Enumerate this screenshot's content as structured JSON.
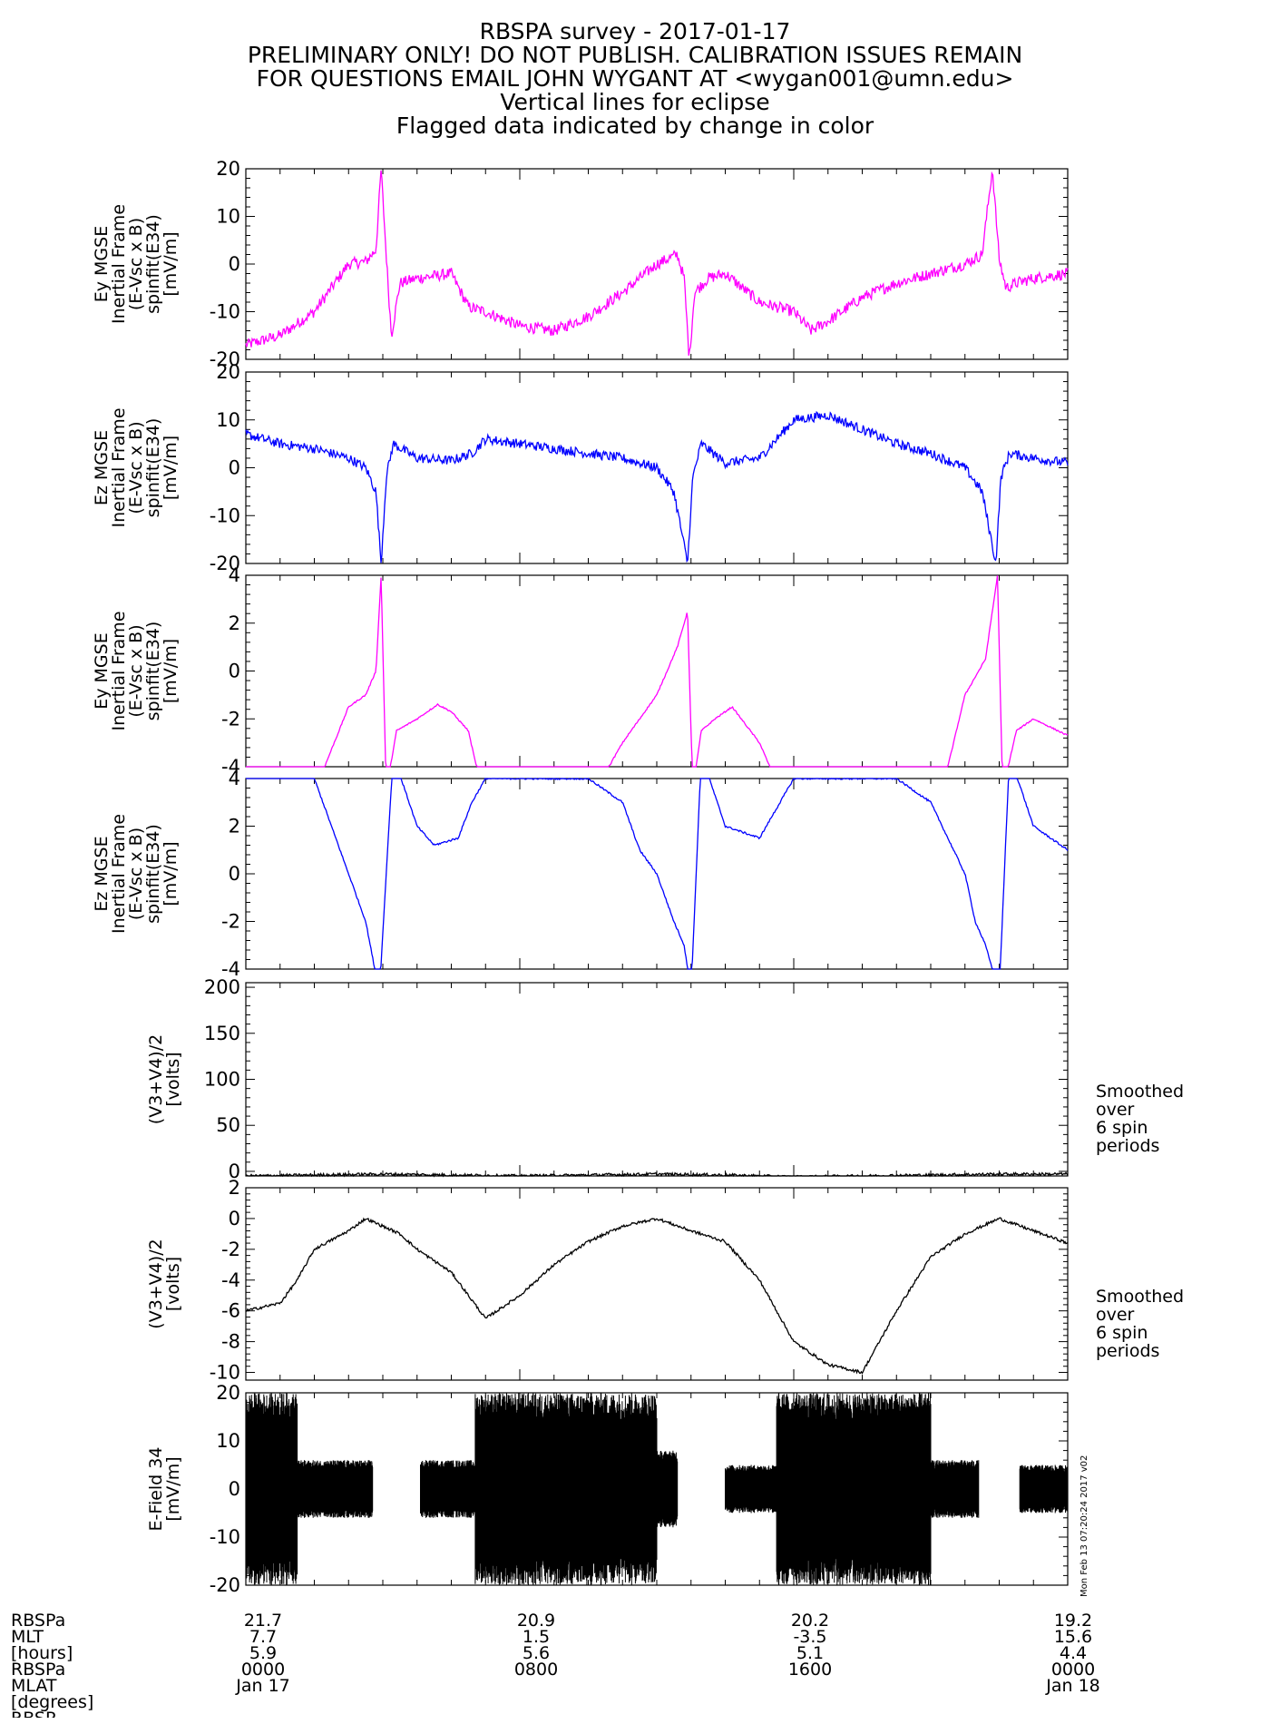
{
  "title_lines": [
    "RBSPA survey - 2017-01-17",
    "PRELIMINARY ONLY! DO NOT PUBLISH. CALIBRATION ISSUES REMAIN",
    "FOR QUESTIONS EMAIL JOHN WYGANT AT <wygan001@umn.edu>",
    "Vertical lines for eclipse",
    "Flagged data indicated by change in color"
  ],
  "side_note": [
    "Smoothed",
    "over",
    "6 spin",
    "periods"
  ],
  "footer": {
    "row_labels": [
      "RBSPa",
      "MLT",
      "[hours]",
      "RBSPa",
      "MLAT",
      "[degrees]",
      "RBSP"
    ],
    "columns": [
      {
        "t": 0,
        "lines": [
          "21.7",
          "7.7",
          "5.9",
          "0000",
          "Jan 17"
        ]
      },
      {
        "t": 8,
        "lines": [
          "20.9",
          "1.5",
          "5.6",
          "0800",
          ""
        ]
      },
      {
        "t": 16,
        "lines": [
          "20.2",
          "-3.5",
          "5.1",
          "1600",
          ""
        ]
      },
      {
        "t": 24,
        "lines": [
          "19.2",
          "15.6",
          "4.4",
          "0000",
          "Jan 18"
        ]
      }
    ]
  },
  "stamp": "Mon Feb 13 07:20:24 2017 v02",
  "chart_data": [
    {
      "type": "line",
      "ylabel": [
        "Ey MGSE",
        "Inertial Frame",
        "(E-Vsc x B)",
        "spinfit(E34)",
        "[mV/m]"
      ],
      "ylim": [
        -20,
        20
      ],
      "yticks": [
        20,
        10,
        0,
        -10,
        -20
      ],
      "color": "#ff00ff",
      "noise": 1.2,
      "x": [
        0,
        1,
        2,
        3,
        3.5,
        3.8,
        3.95,
        4.1,
        4.25,
        4.5,
        5,
        6,
        6.5,
        7,
        8,
        9,
        10,
        11,
        12,
        12.6,
        12.8,
        12.95,
        13.1,
        13.5,
        14,
        15,
        16,
        16.5,
        17,
        18,
        19,
        20,
        21,
        21.5,
        21.8,
        22,
        22.2,
        22.5,
        23,
        24
      ],
      "y": [
        -17,
        -15,
        -10,
        0,
        0.5,
        3,
        20,
        2,
        -15,
        -4,
        -3,
        -2,
        -9,
        -10,
        -13,
        -14,
        -11,
        -6,
        0,
        2,
        -3,
        -20,
        -6,
        -3,
        -2,
        -8,
        -10,
        -14,
        -12,
        -7,
        -4,
        -2,
        0,
        2,
        20,
        1,
        -5,
        -4,
        -3,
        -2
      ]
    },
    {
      "type": "line",
      "ylabel": [
        "Ez MGSE",
        "Inertial Frame",
        "(E-Vsc x B)",
        "spinfit(E34)",
        "[mV/m]"
      ],
      "ylim": [
        -20,
        20
      ],
      "yticks": [
        20,
        10,
        0,
        -10,
        -20
      ],
      "color": "#0000ff",
      "noise": 1.0,
      "x": [
        0,
        1,
        2,
        3,
        3.5,
        3.8,
        3.95,
        4.1,
        4.3,
        5,
        6,
        6.6,
        7,
        8,
        9,
        10,
        11,
        12,
        12.5,
        12.9,
        13.05,
        13.3,
        14,
        15,
        15.5,
        16,
        17,
        18,
        19,
        20,
        21,
        21.5,
        21.9,
        22.05,
        22.3,
        23,
        24
      ],
      "y": [
        7,
        5,
        4,
        2,
        0,
        -5,
        -20,
        -2,
        5,
        2,
        1.5,
        3,
        6,
        5,
        4,
        3,
        2,
        0,
        -5,
        -20,
        -2,
        5,
        1,
        2,
        6,
        10,
        11,
        8,
        5,
        3,
        0,
        -5,
        -20,
        -2,
        3,
        2,
        1
      ]
    },
    {
      "type": "line",
      "ylabel": [
        "Ey MGSE",
        "Inertial Frame",
        "(E-Vsc x B)",
        "spinfit(E34)",
        "[mV/m]"
      ],
      "ylim": [
        -4,
        4
      ],
      "yticks": [
        4,
        2,
        0,
        -2,
        -4
      ],
      "color": "#ff00ff",
      "noise": 0.15,
      "x": [
        0,
        1.5,
        2.3,
        3,
        3.5,
        3.8,
        3.95,
        4.1,
        4.4,
        5,
        5.6,
        6,
        6.5,
        6.7,
        7,
        9,
        10.2,
        11,
        12,
        12.6,
        12.9,
        13.05,
        13.3,
        13.7,
        14.2,
        15,
        15.6,
        16,
        17,
        18,
        19,
        20,
        20.5,
        21,
        21.6,
        21.95,
        22.1,
        22.5,
        23,
        24
      ],
      "y": [
        -5,
        -5,
        -4,
        -1.5,
        -1,
        0,
        4,
        -5,
        -2.5,
        -2,
        -1.4,
        -1.7,
        -2.5,
        -3.8,
        -5,
        -5,
        -5,
        -3,
        -1,
        1,
        2.5,
        -5,
        -2.5,
        -2,
        -1.5,
        -3,
        -5,
        -5,
        -5,
        -5,
        -5,
        -5,
        -4,
        -1,
        0.5,
        4,
        -5,
        -2.5,
        -2,
        -2.7
      ]
    },
    {
      "type": "line",
      "ylabel": [
        "Ez MGSE",
        "Inertial Frame",
        "(E-Vsc x B)",
        "spinfit(E34)",
        "[mV/m]"
      ],
      "ylim": [
        -4,
        4
      ],
      "yticks": [
        4,
        2,
        0,
        -2,
        -4
      ],
      "color": "#0000ff",
      "noise": 0.2,
      "x": [
        0,
        1,
        2,
        2.5,
        3,
        3.5,
        3.7,
        3.9,
        4.3,
        5,
        5.5,
        6.2,
        6.6,
        7,
        8,
        9,
        10,
        11,
        11.5,
        12,
        12.5,
        12.8,
        13,
        13.3,
        14,
        15,
        16,
        17,
        18,
        19,
        20,
        21,
        21.3,
        21.6,
        22,
        22.3,
        23,
        24
      ],
      "y": [
        5,
        5,
        4,
        2,
        0,
        -2,
        -3.5,
        -5,
        5,
        2,
        1.2,
        1.5,
        3,
        4,
        4,
        4,
        4,
        3,
        1,
        0,
        -2,
        -3,
        -5,
        5,
        2,
        1.5,
        4,
        4,
        4,
        4,
        3,
        0,
        -2,
        -3,
        -5,
        5,
        2,
        1
      ]
    },
    {
      "type": "line",
      "ylabel": [
        "(V3+V4)/2",
        "[volts]"
      ],
      "ylim": [
        -5,
        205
      ],
      "yticks": [
        200,
        150,
        100,
        50,
        0
      ],
      "color": "#000000",
      "noise": 0.3,
      "x": [
        0,
        2,
        4,
        6,
        8,
        10,
        12,
        14,
        16,
        18,
        20,
        22,
        24
      ],
      "y": [
        -5,
        -4,
        -3,
        -4,
        -5,
        -4,
        -3,
        -4,
        -6,
        -5,
        -4,
        -3,
        -3
      ]
    },
    {
      "type": "line",
      "ylabel": [
        "(V3+V4)/2",
        "[volts]"
      ],
      "ylim": [
        -10.5,
        2
      ],
      "yticks": [
        2,
        0,
        -2,
        -4,
        -6,
        -8,
        -10
      ],
      "color": "#000000",
      "noise": 0.3,
      "x": [
        0,
        1,
        1.5,
        2,
        3,
        3.5,
        4.5,
        5,
        6,
        7,
        8,
        9,
        10,
        11,
        12,
        13,
        14,
        15,
        16,
        17,
        18,
        19,
        20,
        21,
        22,
        23,
        24
      ],
      "y": [
        -6,
        -5.5,
        -4,
        -2,
        -0.8,
        0,
        -1,
        -2,
        -3.5,
        -6.5,
        -5,
        -3,
        -1.5,
        -0.5,
        0,
        -0.8,
        -1.5,
        -4,
        -8,
        -9.5,
        -10,
        -6,
        -2.5,
        -1,
        0,
        -0.8,
        -1.6
      ]
    },
    {
      "type": "area",
      "ylabel": [
        "E-Field 34",
        "[mV/m]"
      ],
      "ylim": [
        -20,
        20
      ],
      "yticks": [
        20,
        10,
        0,
        -10,
        -20
      ],
      "color": "#000000",
      "segments": [
        {
          "x0": 0,
          "x1": 1.5,
          "amp": 20
        },
        {
          "x0": 1.5,
          "x1": 3.7,
          "amp": 6
        },
        {
          "x0": 5.1,
          "x1": 6.7,
          "amp": 6
        },
        {
          "x0": 6.7,
          "x1": 12.0,
          "amp": 20
        },
        {
          "x0": 12.0,
          "x1": 12.6,
          "amp": 8
        },
        {
          "x0": 14.0,
          "x1": 15.5,
          "amp": 5
        },
        {
          "x0": 15.5,
          "x1": 20.0,
          "amp": 20
        },
        {
          "x0": 20.0,
          "x1": 21.4,
          "amp": 6
        },
        {
          "x0": 22.6,
          "x1": 24.0,
          "amp": 5
        }
      ]
    }
  ],
  "xaxis": {
    "xlim": [
      0,
      24
    ]
  }
}
